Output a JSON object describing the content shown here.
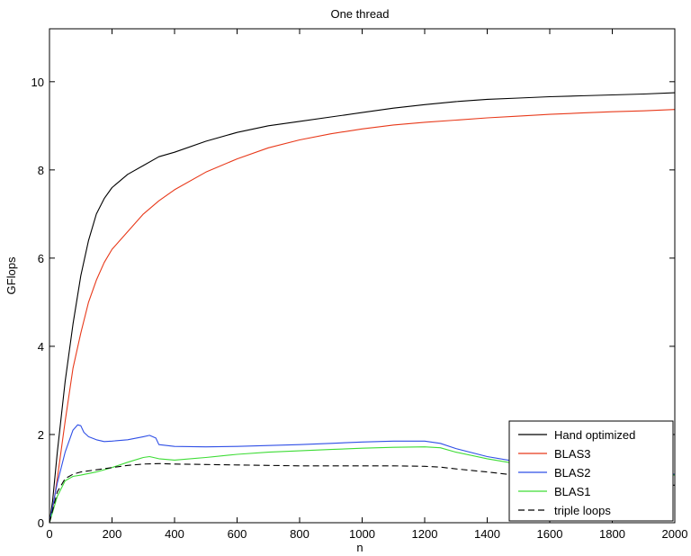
{
  "chart_data": {
    "type": "line",
    "title": "One thread",
    "xlabel": "n",
    "ylabel": "GFlops",
    "xlim": [
      0,
      2000
    ],
    "ylim": [
      0,
      11.2
    ],
    "xticks": [
      0,
      200,
      400,
      600,
      800,
      1000,
      1200,
      1400,
      1600,
      1800,
      2000
    ],
    "yticks": [
      0,
      2,
      4,
      6,
      8,
      10
    ],
    "xtick_labels": [
      "0",
      "200",
      "400",
      "600",
      "800",
      "1000",
      "1200",
      "1400",
      "1600",
      "1800",
      "2000"
    ],
    "ytick_labels": [
      "0",
      "2",
      "4",
      "6",
      "8",
      "10"
    ],
    "grid": false,
    "legend_position": "bottom-right",
    "series": [
      {
        "name": "Hand optimized",
        "color": "#000000",
        "dash": "solid",
        "x": [
          0,
          10,
          25,
          50,
          75,
          100,
          125,
          150,
          175,
          200,
          250,
          300,
          350,
          400,
          500,
          600,
          700,
          800,
          900,
          1000,
          1100,
          1200,
          1300,
          1400,
          1500,
          1600,
          1700,
          1800,
          1900,
          2000
        ],
        "y": [
          0,
          0.5,
          1.6,
          3.2,
          4.5,
          5.6,
          6.4,
          7.0,
          7.35,
          7.6,
          7.9,
          8.1,
          8.3,
          8.4,
          8.65,
          8.85,
          9.0,
          9.1,
          9.2,
          9.3,
          9.4,
          9.48,
          9.55,
          9.6,
          9.63,
          9.66,
          9.68,
          9.7,
          9.72,
          9.75
        ]
      },
      {
        "name": "BLAS3",
        "color": "#e8391a",
        "dash": "solid",
        "x": [
          0,
          10,
          25,
          50,
          75,
          100,
          125,
          150,
          175,
          200,
          250,
          300,
          350,
          400,
          500,
          600,
          700,
          800,
          900,
          1000,
          1100,
          1200,
          1300,
          1400,
          1500,
          1600,
          1700,
          1800,
          1900,
          2000
        ],
        "y": [
          0,
          0.3,
          1.0,
          2.3,
          3.5,
          4.3,
          5.0,
          5.5,
          5.9,
          6.2,
          6.6,
          7.0,
          7.3,
          7.55,
          7.95,
          8.25,
          8.5,
          8.68,
          8.82,
          8.93,
          9.02,
          9.08,
          9.13,
          9.18,
          9.22,
          9.26,
          9.29,
          9.32,
          9.34,
          9.37
        ]
      },
      {
        "name": "BLAS2",
        "color": "#2f4fe6",
        "dash": "solid",
        "x": [
          0,
          25,
          50,
          75,
          90,
          100,
          110,
          125,
          150,
          175,
          200,
          250,
          300,
          320,
          340,
          350,
          400,
          500,
          600,
          700,
          800,
          900,
          1000,
          1100,
          1200,
          1250,
          1300,
          1400,
          1500,
          1600,
          1700,
          1800,
          1900,
          2000
        ],
        "y": [
          0,
          0.9,
          1.6,
          2.1,
          2.22,
          2.2,
          2.05,
          1.95,
          1.88,
          1.84,
          1.85,
          1.88,
          1.95,
          1.98,
          1.92,
          1.77,
          1.73,
          1.72,
          1.73,
          1.75,
          1.77,
          1.8,
          1.83,
          1.85,
          1.85,
          1.8,
          1.68,
          1.5,
          1.38,
          1.3,
          1.22,
          1.16,
          1.12,
          1.1
        ]
      },
      {
        "name": "BLAS1",
        "color": "#3ddc35",
        "dash": "solid",
        "x": [
          0,
          25,
          50,
          75,
          100,
          150,
          200,
          250,
          300,
          320,
          350,
          400,
          500,
          600,
          700,
          800,
          900,
          1000,
          1100,
          1200,
          1250,
          1300,
          1400,
          1500,
          1600,
          1700,
          1800,
          1900,
          2000
        ],
        "y": [
          0,
          0.6,
          0.95,
          1.05,
          1.08,
          1.15,
          1.25,
          1.37,
          1.48,
          1.5,
          1.45,
          1.42,
          1.48,
          1.55,
          1.6,
          1.63,
          1.66,
          1.69,
          1.71,
          1.72,
          1.7,
          1.6,
          1.45,
          1.33,
          1.25,
          1.18,
          1.13,
          1.1,
          1.08
        ]
      },
      {
        "name": "triple loops",
        "color": "#000000",
        "dash": "dashed",
        "x": [
          0,
          25,
          50,
          75,
          100,
          150,
          200,
          250,
          300,
          350,
          400,
          500,
          600,
          700,
          800,
          900,
          1000,
          1100,
          1200,
          1250,
          1300,
          1400,
          1500,
          1600,
          1700,
          1800,
          1900,
          2000
        ],
        "y": [
          0,
          0.7,
          1.0,
          1.1,
          1.15,
          1.2,
          1.25,
          1.3,
          1.33,
          1.34,
          1.33,
          1.32,
          1.31,
          1.3,
          1.29,
          1.29,
          1.29,
          1.29,
          1.28,
          1.26,
          1.22,
          1.15,
          1.07,
          1.0,
          0.95,
          0.9,
          0.87,
          0.85
        ]
      }
    ]
  }
}
